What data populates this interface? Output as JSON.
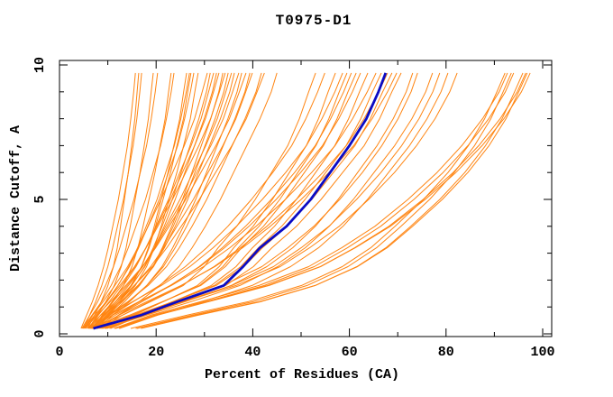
{
  "title": "T0975-D1",
  "colors": {
    "model": "#FF8512",
    "highlight": "#0B0BC4",
    "axis": "#000000",
    "background": "#FFFFFF"
  },
  "chart_data": {
    "type": "line",
    "title": "T0975-D1",
    "xlabel": "Percent of Residues (CA)",
    "ylabel": "Distance Cutoff, A",
    "xlim": [
      0,
      102
    ],
    "ylim": [
      -0.1,
      10.2
    ],
    "grid": false,
    "legend": "none",
    "x_ticks_major": [
      0,
      20,
      40,
      60,
      80,
      100
    ],
    "x_ticks_minor": [
      10,
      30,
      50,
      70,
      90
    ],
    "y_ticks_major": [
      0,
      5,
      10
    ],
    "y_ticks_minor": [
      1,
      2,
      3,
      4,
      6,
      7,
      8,
      9
    ],
    "cutoffs": [
      0.2,
      0.7,
      1.2,
      1.8,
      2.5,
      3.2,
      4.0,
      5.0,
      6.0,
      7.0,
      8.0,
      9.0,
      9.7
    ],
    "profiles": {
      "steep1": [
        0.04,
        0.14,
        0.24,
        0.34,
        0.44,
        0.52,
        0.6,
        0.7,
        0.78,
        0.86,
        0.92,
        0.97,
        1
      ],
      "steep2": [
        0.07,
        0.2,
        0.32,
        0.44,
        0.54,
        0.61,
        0.67,
        0.74,
        0.81,
        0.87,
        0.93,
        0.97,
        1
      ],
      "mid1": [
        0.04,
        0.11,
        0.19,
        0.28,
        0.38,
        0.46,
        0.54,
        0.64,
        0.73,
        0.82,
        0.9,
        0.96,
        1
      ],
      "mid2": [
        0.06,
        0.16,
        0.27,
        0.38,
        0.48,
        0.55,
        0.62,
        0.7,
        0.77,
        0.84,
        0.91,
        0.97,
        1
      ],
      "center1": [
        0.03,
        0.17,
        0.29,
        0.43,
        0.52,
        0.58,
        0.66,
        0.74,
        0.81,
        0.88,
        0.93,
        0.97,
        1
      ],
      "center2": [
        0.02,
        0.1,
        0.19,
        0.3,
        0.41,
        0.5,
        0.59,
        0.69,
        0.78,
        0.86,
        0.92,
        0.97,
        1
      ],
      "late": [
        0.05,
        0.17,
        0.3,
        0.44,
        0.55,
        0.63,
        0.7,
        0.77,
        0.83,
        0.89,
        0.94,
        0.98,
        1
      ],
      "sigmoid1": [
        0.08,
        0.22,
        0.37,
        0.5,
        0.6,
        0.67,
        0.73,
        0.8,
        0.86,
        0.91,
        0.95,
        0.98,
        1
      ],
      "sigmoid2": [
        0.05,
        0.14,
        0.26,
        0.4,
        0.52,
        0.6,
        0.68,
        0.76,
        0.83,
        0.89,
        0.94,
        0.98,
        1
      ]
    },
    "models": [
      {
        "start": 4,
        "end": 15.7,
        "profile": "steep1"
      },
      {
        "start": 5,
        "end": 16.4,
        "profile": "steep2"
      },
      {
        "start": 4.5,
        "end": 17.0,
        "profile": "steep1"
      },
      {
        "start": 5,
        "end": 19.4,
        "profile": "steep2"
      },
      {
        "start": 4,
        "end": 20.3,
        "profile": "steep1"
      },
      {
        "start": 5.5,
        "end": 23.1,
        "profile": "steep2"
      },
      {
        "start": 4,
        "end": 23.7,
        "profile": "steep1"
      },
      {
        "start": 6,
        "end": 26.3,
        "profile": "steep2"
      },
      {
        "start": 4.5,
        "end": 26.9,
        "profile": "steep1"
      },
      {
        "start": 5,
        "end": 27.2,
        "profile": "steep2"
      },
      {
        "start": 4,
        "end": 27.8,
        "profile": "steep1"
      },
      {
        "start": 5.5,
        "end": 28.7,
        "profile": "steep2"
      },
      {
        "start": 4,
        "end": 30.6,
        "profile": "mid1"
      },
      {
        "start": 5,
        "end": 31.2,
        "profile": "mid2"
      },
      {
        "start": 6,
        "end": 31.9,
        "profile": "mid1"
      },
      {
        "start": 4,
        "end": 32.5,
        "profile": "mid2"
      },
      {
        "start": 5,
        "end": 33.0,
        "profile": "mid1"
      },
      {
        "start": 6,
        "end": 33.8,
        "profile": "mid2"
      },
      {
        "start": 4,
        "end": 34.3,
        "profile": "mid1"
      },
      {
        "start": 5,
        "end": 34.9,
        "profile": "mid2"
      },
      {
        "start": 6,
        "end": 35.6,
        "profile": "mid1"
      },
      {
        "start": 4,
        "end": 36.2,
        "profile": "mid2"
      },
      {
        "start": 5,
        "end": 37.1,
        "profile": "mid1"
      },
      {
        "start": 6,
        "end": 37.7,
        "profile": "mid2"
      },
      {
        "start": 4,
        "end": 38.6,
        "profile": "mid1"
      },
      {
        "start": 5,
        "end": 39.4,
        "profile": "mid2"
      },
      {
        "start": 6,
        "end": 39.9,
        "profile": "mid1"
      },
      {
        "start": 4,
        "end": 41.8,
        "profile": "mid2"
      },
      {
        "start": 5,
        "end": 42.4,
        "profile": "mid1"
      },
      {
        "start": 6,
        "end": 45.0,
        "profile": "mid2"
      },
      {
        "start": 5,
        "end": 53.0,
        "profile": "center1"
      },
      {
        "start": 6,
        "end": 54.9,
        "profile": "center2"
      },
      {
        "start": 7,
        "end": 57.1,
        "profile": "center1"
      },
      {
        "start": 5,
        "end": 58.6,
        "profile": "center2"
      },
      {
        "start": 6,
        "end": 59.5,
        "profile": "center1"
      },
      {
        "start": 7,
        "end": 60.4,
        "profile": "center2"
      },
      {
        "start": 5,
        "end": 61.4,
        "profile": "center1"
      },
      {
        "start": 6,
        "end": 62.3,
        "profile": "center2"
      },
      {
        "start": 7,
        "end": 63.8,
        "profile": "center1"
      },
      {
        "start": 5,
        "end": 65.5,
        "profile": "center2"
      },
      {
        "start": 6,
        "end": 66.6,
        "profile": "center1"
      },
      {
        "start": 7,
        "end": 67.9,
        "profile": "center2"
      },
      {
        "start": 5,
        "end": 68.8,
        "profile": "center1"
      },
      {
        "start": 6,
        "end": 69.8,
        "profile": "center2"
      },
      {
        "start": 7,
        "end": 70.7,
        "profile": "center1"
      },
      {
        "start": 6,
        "end": 73.1,
        "profile": "late"
      },
      {
        "start": 7,
        "end": 74.1,
        "profile": "sigmoid2"
      },
      {
        "start": 6,
        "end": 77.2,
        "profile": "late"
      },
      {
        "start": 7,
        "end": 78.7,
        "profile": "sigmoid2"
      },
      {
        "start": 8,
        "end": 80.4,
        "profile": "late"
      },
      {
        "start": 6,
        "end": 82.3,
        "profile": "sigmoid2"
      },
      {
        "start": 8,
        "end": 92.2,
        "profile": "sigmoid1"
      },
      {
        "start": 7,
        "end": 92.7,
        "profile": "sigmoid2"
      },
      {
        "start": 9,
        "end": 93.5,
        "profile": "sigmoid1"
      },
      {
        "start": 8,
        "end": 94.0,
        "profile": "sigmoid2"
      },
      {
        "start": 10,
        "end": 95.9,
        "profile": "sigmoid1"
      },
      {
        "start": 8,
        "end": 96.5,
        "profile": "sigmoid2"
      },
      {
        "start": 9,
        "end": 96.8,
        "profile": "sigmoid1"
      },
      {
        "start": 7,
        "end": 97.4,
        "profile": "sigmoid2"
      }
    ],
    "highlight": {
      "name": "highlighted-model",
      "percents": [
        7,
        17,
        24.5,
        34,
        38,
        41.5,
        47,
        52,
        56,
        60,
        63.5,
        66,
        67.5
      ]
    }
  }
}
